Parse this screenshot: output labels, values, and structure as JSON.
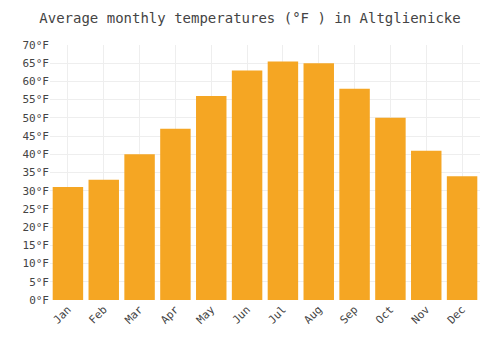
{
  "chart_data": {
    "type": "bar",
    "title": "Average monthly temperatures (°F ) in Altglienicke",
    "categories": [
      "Jan",
      "Feb",
      "Mar",
      "Apr",
      "May",
      "Jun",
      "Jul",
      "Aug",
      "Sep",
      "Oct",
      "Nov",
      "Dec"
    ],
    "values": [
      31,
      33,
      40,
      47,
      56,
      63,
      65.5,
      65,
      58,
      50,
      41,
      34
    ],
    "color": "#F5A623",
    "ylim": [
      0,
      70
    ],
    "yticks": [
      {
        "value": 0,
        "label": "0°F"
      },
      {
        "value": 5,
        "label": "5°F"
      },
      {
        "value": 10,
        "label": "10°F"
      },
      {
        "value": 15,
        "label": "15°F"
      },
      {
        "value": 20,
        "label": "20°F"
      },
      {
        "value": 25,
        "label": "25°F"
      },
      {
        "value": 30,
        "label": "30°F"
      },
      {
        "value": 35,
        "label": "35°F"
      },
      {
        "value": 40,
        "label": "40°F"
      },
      {
        "value": 45,
        "label": "45°F"
      },
      {
        "value": 50,
        "label": "50°F"
      },
      {
        "value": 55,
        "label": "55°F"
      },
      {
        "value": 60,
        "label": "60°F"
      },
      {
        "value": 65,
        "label": "65°F"
      },
      {
        "value": 70,
        "label": "70°F"
      }
    ],
    "grid": true
  }
}
